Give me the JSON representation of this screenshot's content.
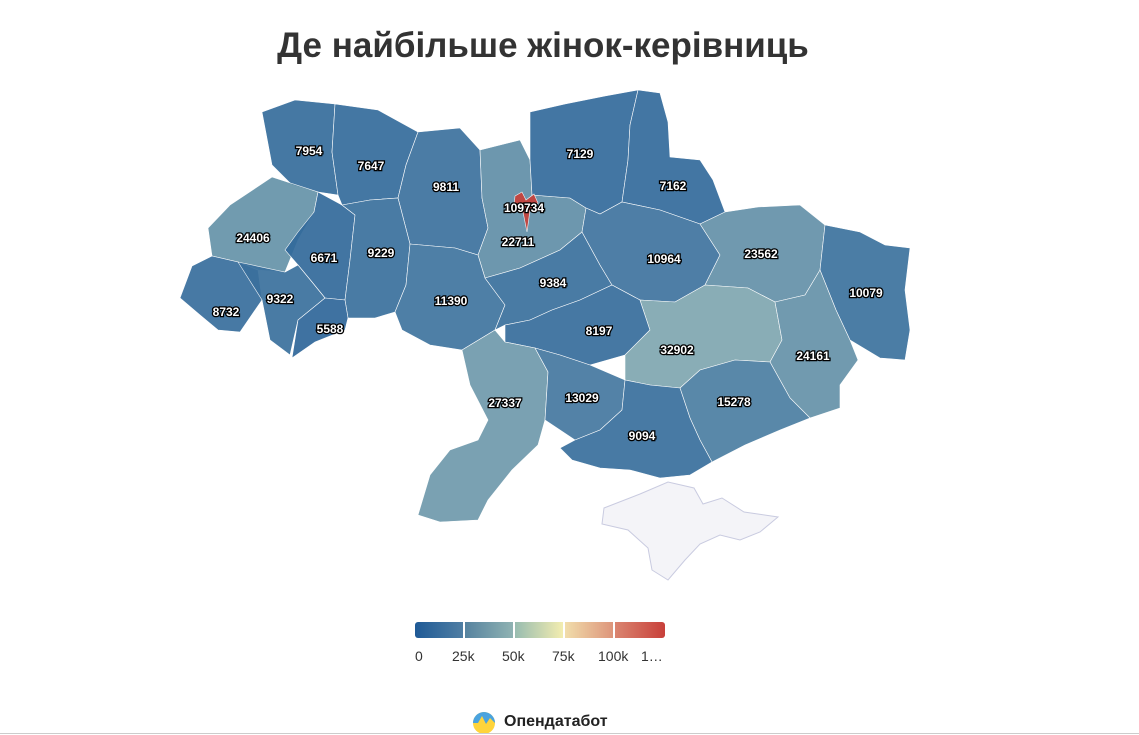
{
  "title": "Де найбільше жінок-керівниць",
  "colors": {
    "low": "#1f5a96",
    "mid": "#7fa7b0",
    "center": "#f4eab0",
    "high": "#c8403a"
  },
  "regions": [
    {
      "name": "Volynska",
      "value": 7954
    },
    {
      "name": "Rivnenska",
      "value": 7647
    },
    {
      "name": "Zhytomyrska",
      "value": 9811
    },
    {
      "name": "Kyivska",
      "value": 22711
    },
    {
      "name": "Kyiv",
      "value": 109734
    },
    {
      "name": "Chernihivska",
      "value": 7129
    },
    {
      "name": "Sumska",
      "value": 7162
    },
    {
      "name": "Lvivska",
      "value": 24406
    },
    {
      "name": "Ternopilska",
      "value": 6671
    },
    {
      "name": "Khmelnytska",
      "value": 9229
    },
    {
      "name": "Vinnytska",
      "value": 11390
    },
    {
      "name": "Cherkaska",
      "value": 9384
    },
    {
      "name": "Poltavska",
      "value": 10964
    },
    {
      "name": "Kharkivska",
      "value": 23562
    },
    {
      "name": "Luhanska",
      "value": 10079
    },
    {
      "name": "Zakarpatska",
      "value": 8732
    },
    {
      "name": "Ivano-Frankivska",
      "value": 9322
    },
    {
      "name": "Chernivetska",
      "value": 5588
    },
    {
      "name": "Kirovohradska",
      "value": 8197
    },
    {
      "name": "Dnipropetrovska",
      "value": 32902
    },
    {
      "name": "Donetska",
      "value": 24161
    },
    {
      "name": "Odeska",
      "value": 27337
    },
    {
      "name": "Mykolaivska",
      "value": 13029
    },
    {
      "name": "Zaporizka",
      "value": 15278
    },
    {
      "name": "Khersonska",
      "value": 9094
    }
  ],
  "legend": {
    "ticks": [
      "0",
      "25k",
      "50k",
      "75k",
      "100k",
      "1…"
    ]
  },
  "brand": {
    "name": "Опендатабот",
    "icon": "opendatabot-logo-icon"
  }
}
